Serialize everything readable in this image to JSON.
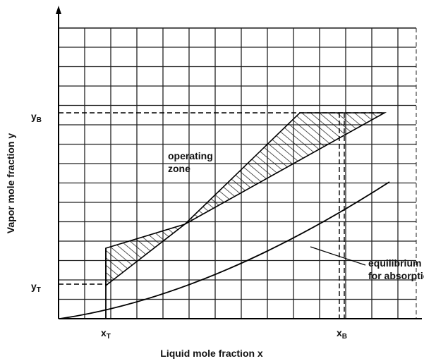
{
  "axes": {
    "x_label": "Liquid mole fraction x",
    "y_label": "Vapor mole fraction y"
  },
  "markers": {
    "y_B": {
      "symbol": "y",
      "subscript": "B"
    },
    "y_T": {
      "symbol": "y",
      "subscript": "T"
    },
    "x_T": {
      "symbol": "x",
      "subscript": "T"
    },
    "x_B": {
      "symbol": "x",
      "subscript": "B"
    }
  },
  "annotations": {
    "operating_zone": [
      "operating",
      "zone"
    ],
    "equilibrium_line": [
      "equilibrium line",
      "for absorption"
    ]
  }
}
